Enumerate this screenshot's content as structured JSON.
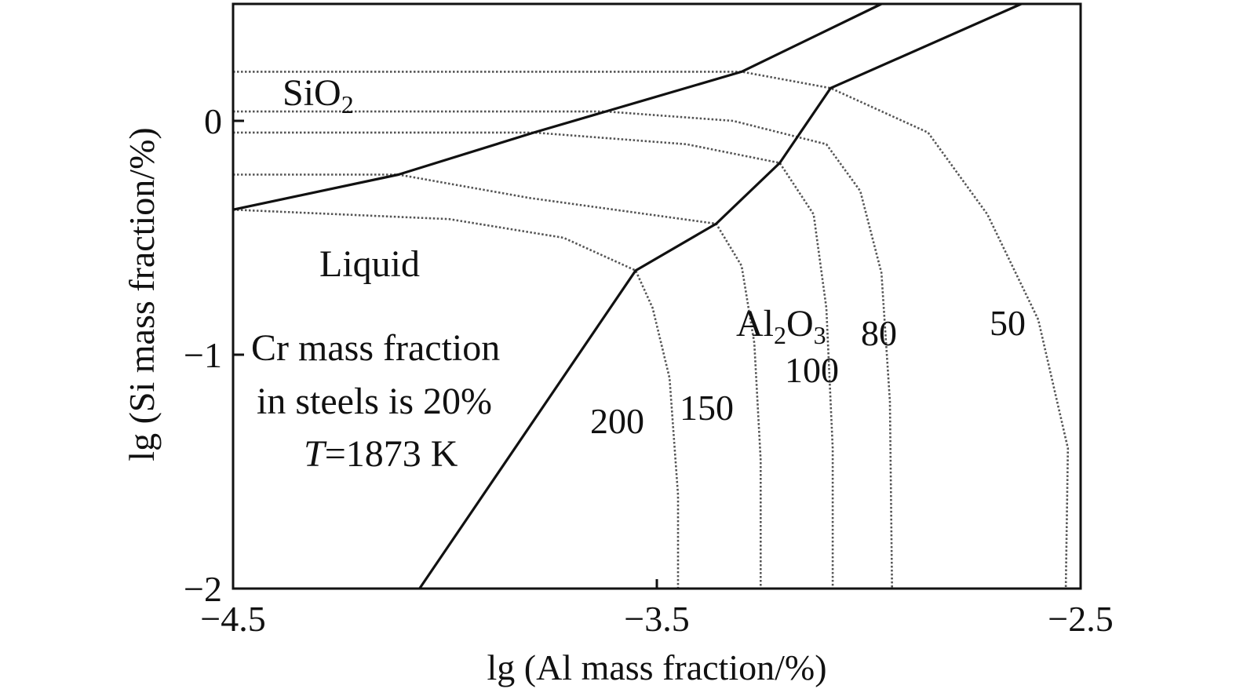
{
  "chart_data": {
    "type": "line",
    "xlabel": "lg (Al mass fraction/%)",
    "ylabel": "lg (Si mass fraction/%)",
    "xlim": [
      -4.5,
      -2.5
    ],
    "ylim": [
      -2,
      0.5
    ],
    "x_ticks": [
      {
        "value": -4.5,
        "label": "−4.5"
      },
      {
        "value": -3.5,
        "label": "−3.5"
      },
      {
        "value": -2.5,
        "label": "−2.5"
      }
    ],
    "y_ticks": [
      {
        "value": -2,
        "label": "−2"
      },
      {
        "value": -1,
        "label": "−1"
      },
      {
        "value": 0,
        "label": "0"
      }
    ],
    "grid": false,
    "regions": {
      "sio2": {
        "base": "SiO",
        "sub": "2"
      },
      "liquid": "Liquid",
      "al2o3": {
        "p1": "Al",
        "s1": "2",
        "p2": "O",
        "s2": "3"
      }
    },
    "annotation": {
      "line1": "Cr mass fraction",
      "line2": "in steels is 20%",
      "line3_italic": "T",
      "line3_rest": "=1873 K"
    },
    "phase_boundaries": [
      {
        "name": "SiO2/Liquid",
        "x": [
          -4.5,
          -4.11,
          -3.79,
          -3.3,
          -2.97
        ],
        "y": [
          -0.38,
          -0.23,
          -0.05,
          0.21,
          0.5
        ]
      },
      {
        "name": "Liquid/Al2O3",
        "x": [
          -4.06,
          -3.55,
          -3.36,
          -3.21,
          -3.09,
          -2.64
        ],
        "y": [
          -2,
          -0.64,
          -0.44,
          -0.18,
          0.14,
          0.5
        ]
      }
    ],
    "isolines": [
      {
        "label": "200",
        "x": [
          -4.5,
          -3.99,
          -3.72,
          -3.55,
          -3.51,
          -3.47,
          -3.45,
          -3.45
        ],
        "y": [
          -0.38,
          -0.42,
          -0.5,
          -0.64,
          -0.8,
          -1.1,
          -1.6,
          -2
        ]
      },
      {
        "label": "150",
        "x": [
          -4.5,
          -4.11,
          -3.8,
          -3.36,
          -3.3,
          -3.27,
          -3.255,
          -3.255
        ],
        "y": [
          -0.23,
          -0.23,
          -0.33,
          -0.44,
          -0.62,
          -0.95,
          -1.45,
          -2
        ]
      },
      {
        "label": "100",
        "x": [
          -4.5,
          -3.79,
          -3.43,
          -3.21,
          -3.13,
          -3.1,
          -3.085,
          -3.085
        ],
        "y": [
          -0.05,
          -0.05,
          -0.1,
          -0.18,
          -0.4,
          -0.8,
          -1.4,
          -2
        ]
      },
      {
        "label": "80",
        "x": [
          -4.5,
          -3.62,
          -3.32,
          -3.1,
          -3.02,
          -2.97,
          -2.95,
          -2.945
        ],
        "y": [
          0.04,
          0.04,
          0.0,
          -0.1,
          -0.3,
          -0.65,
          -1.2,
          -2
        ]
      },
      {
        "label": "50",
        "x": [
          -4.5,
          -3.3,
          -3.09,
          -2.86,
          -2.72,
          -2.6,
          -2.53,
          -2.535
        ],
        "y": [
          0.21,
          0.21,
          0.14,
          -0.05,
          -0.4,
          -0.85,
          -1.4,
          -2
        ]
      }
    ]
  }
}
